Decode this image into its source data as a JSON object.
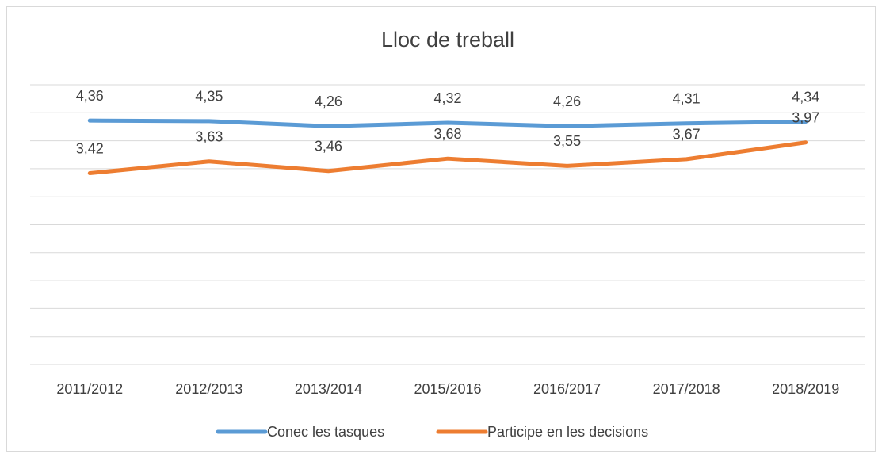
{
  "chart_data": {
    "type": "line",
    "title": "Lloc de treball",
    "categories": [
      "2011/2012",
      "2012/2013",
      "2013/2014",
      "2015/2016",
      "2016/2017",
      "2017/2018",
      "2018/2019"
    ],
    "series": [
      {
        "name": "Conec les tasques",
        "color": "#5b9bd5",
        "values": [
          4.36,
          4.35,
          4.26,
          4.32,
          4.26,
          4.31,
          4.34
        ],
        "value_labels": [
          "4,36",
          "4,35",
          "4,26",
          "4,32",
          "4,26",
          "4,31",
          "4,34"
        ]
      },
      {
        "name": "Participe en les decisions",
        "color": "#ed7d31",
        "values": [
          3.42,
          3.63,
          3.46,
          3.68,
          3.55,
          3.67,
          3.97
        ],
        "value_labels": [
          "3,42",
          "3,63",
          "3,46",
          "3,68",
          "3,55",
          "3,67",
          "3,97"
        ]
      }
    ],
    "ylim": [
      0,
      5
    ],
    "yticks": [
      0,
      0.5,
      1,
      1.5,
      2,
      2.5,
      3,
      3.5,
      4,
      4.5,
      5
    ],
    "grid": true,
    "legend": "bottom"
  }
}
